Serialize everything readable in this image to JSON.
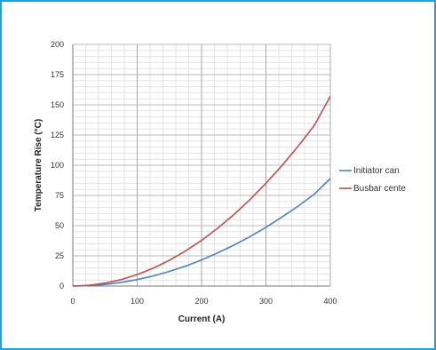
{
  "chart_data": {
    "type": "line",
    "xlabel": "Current (A)",
    "ylabel": "Temperature Rise (°C)",
    "xlim": [
      0,
      400
    ],
    "ylim": [
      0,
      200
    ],
    "x_ticks": [
      0,
      100,
      200,
      300,
      400
    ],
    "y_ticks": [
      0,
      25,
      50,
      75,
      100,
      125,
      150,
      175,
      200
    ],
    "grid": true,
    "legend_position": "right",
    "x": [
      0,
      25,
      50,
      75,
      100,
      125,
      150,
      175,
      200,
      225,
      250,
      275,
      300,
      325,
      350,
      375,
      400
    ],
    "series": [
      {
        "name": "Initiator can",
        "color": "#4f81bd",
        "values": [
          0,
          0.3,
          1.3,
          3.0,
          5.4,
          8.4,
          12.1,
          16.5,
          21.6,
          27.4,
          33.8,
          40.9,
          48.6,
          57.1,
          66.2,
          76.0,
          89.0
        ]
      },
      {
        "name": "Busbar cente",
        "color": "#c0504d",
        "values": [
          0,
          0.6,
          2.4,
          5.3,
          9.5,
          14.8,
          21.3,
          29.0,
          37.8,
          47.9,
          59.1,
          71.5,
          85.1,
          99.8,
          115.8,
          132.9,
          157.0
        ]
      }
    ]
  }
}
